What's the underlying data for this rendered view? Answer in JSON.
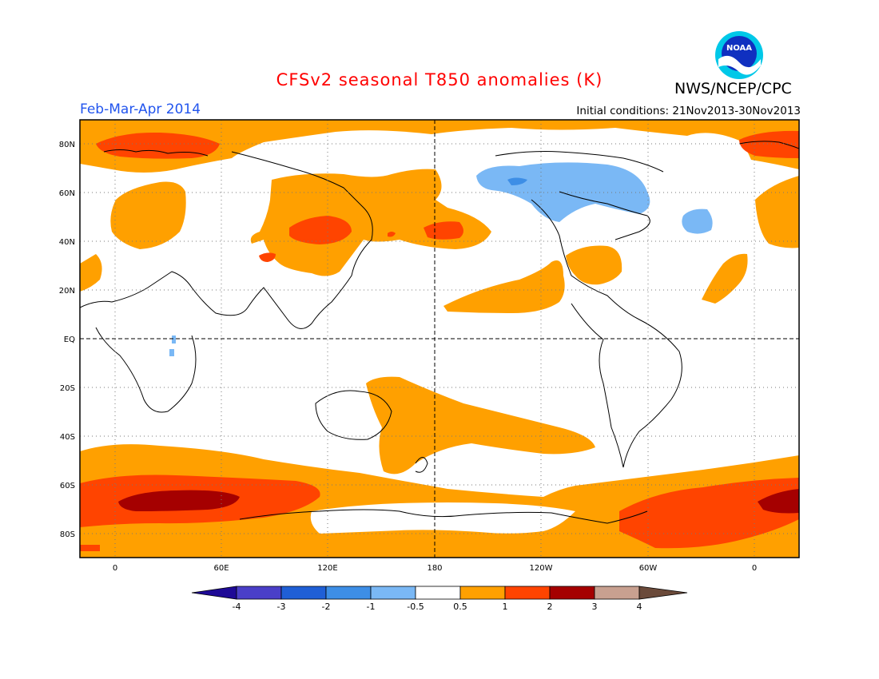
{
  "title": "CFSv2 seasonal T850 anomalies (K)",
  "agency": "NWS/NCEP/CPC",
  "logo_text": "NOAA",
  "period": "Feb-Mar-Apr 2014",
  "initial_conditions": "Initial conditions: 21Nov2013-30Nov2013",
  "lat_labels": [
    "80N",
    "60N",
    "40N",
    "20N",
    "EQ",
    "20S",
    "40S",
    "60S",
    "80S"
  ],
  "lon_labels": [
    "0",
    "60E",
    "120E",
    "180",
    "120W",
    "60W",
    "0"
  ],
  "colorbar": {
    "labels": [
      "-4",
      "-3",
      "-2",
      "-1",
      "-0.5",
      "0.5",
      "1",
      "2",
      "3",
      "4"
    ],
    "colors": [
      "#1e0a96",
      "#4a3fc8",
      "#1f5fd6",
      "#3d8ee6",
      "#7ab8f5",
      "#ffffff",
      "#ffa000",
      "#ff4400",
      "#a50000",
      "#c8a090",
      "#6b4a3a"
    ]
  }
}
